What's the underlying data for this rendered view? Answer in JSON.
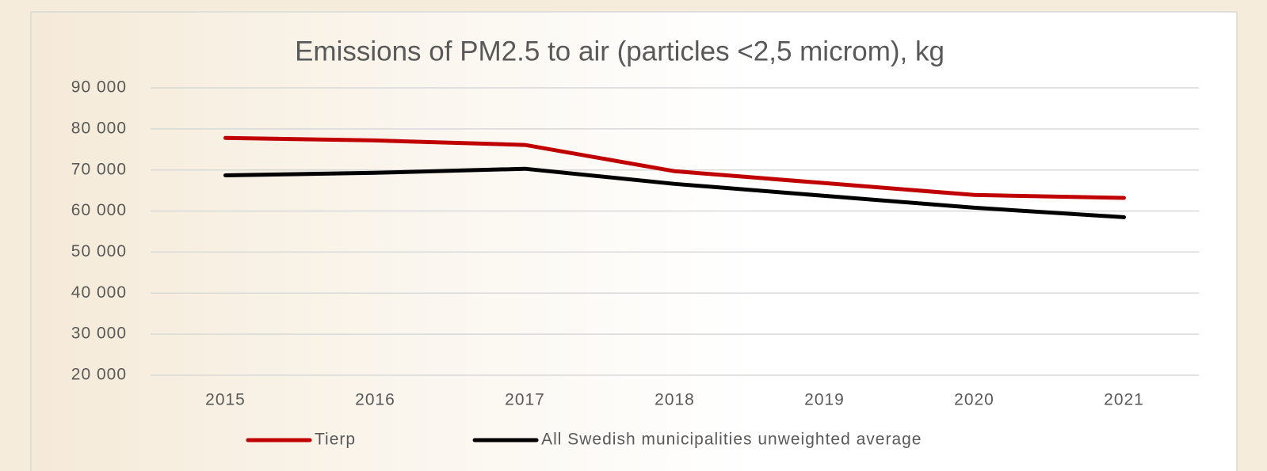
{
  "chart_data": {
    "type": "line",
    "title": "Emissions of PM2.5 to air (particles <2,5 microm), kg",
    "categories": [
      "2015",
      "2016",
      "2017",
      "2018",
      "2019",
      "2020",
      "2021"
    ],
    "series": [
      {
        "name": "Tierp",
        "color": "#c00000",
        "values": [
          77800,
          77200,
          76100,
          69700,
          66800,
          63900,
          63200
        ]
      },
      {
        "name": "All Swedish municipalities unweighted average",
        "color": "#000000",
        "values": [
          68700,
          69300,
          70300,
          66600,
          63700,
          60800,
          58500
        ]
      }
    ],
    "ylim": [
      20000,
      90000
    ],
    "yticks": [
      {
        "value": 20000,
        "label": "20 000"
      },
      {
        "value": 30000,
        "label": "30 000"
      },
      {
        "value": 40000,
        "label": "40 000"
      },
      {
        "value": 50000,
        "label": "50 000"
      },
      {
        "value": 60000,
        "label": "60 000"
      },
      {
        "value": 70000,
        "label": "70 000"
      },
      {
        "value": 80000,
        "label": "80 000"
      },
      {
        "value": 90000,
        "label": "90 000"
      }
    ],
    "grid": true,
    "legend": "bottom"
  }
}
